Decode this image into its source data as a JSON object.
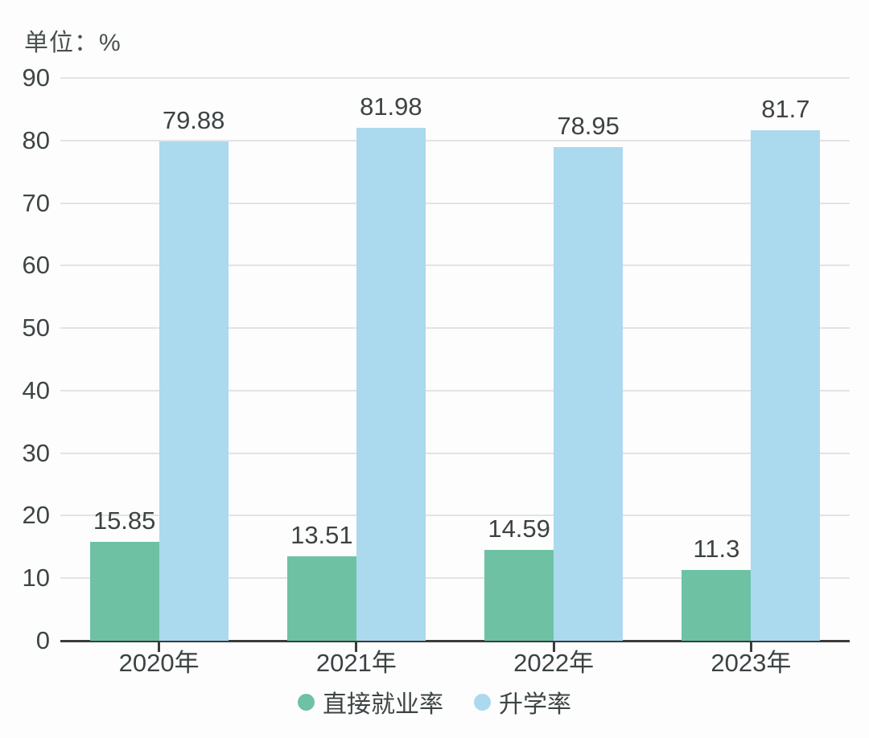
{
  "unit_label": "单位：%",
  "colors": {
    "employment_green": "#6ec2a3",
    "enrollment_blue": "#abd9ee",
    "axis": "#3c3c3c",
    "grid": "#e3e3e3",
    "text": "#3d4343"
  },
  "chart_data": {
    "type": "bar",
    "title": "",
    "xlabel": "",
    "ylabel": "单位：%",
    "categories": [
      "2020年",
      "2021年",
      "2022年",
      "2023年"
    ],
    "series": [
      {
        "name": "直接就业率",
        "color": "#6ec2a3",
        "values": [
          15.85,
          13.51,
          14.59,
          11.3
        ]
      },
      {
        "name": "升学率",
        "color": "#abd9ee",
        "values": [
          79.88,
          81.98,
          78.95,
          81.7
        ]
      }
    ],
    "ylim": [
      0,
      90
    ],
    "ytick_step": 10,
    "grid": true,
    "legend_position": "bottom"
  }
}
